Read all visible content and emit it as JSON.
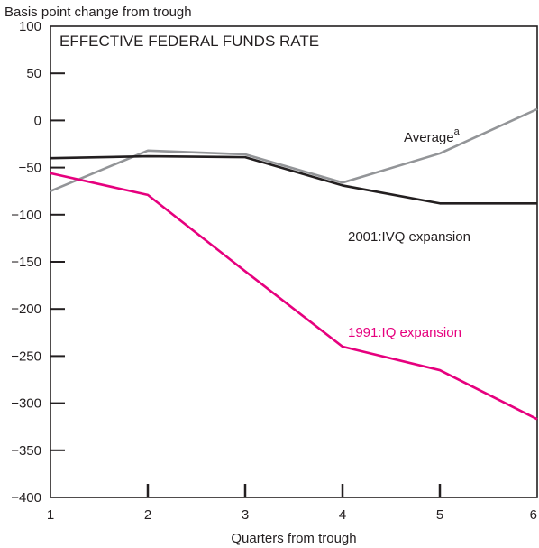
{
  "chart_data": {
    "type": "line",
    "title": "EFFECTIVE FEDERAL FUNDS RATE",
    "ylabel": "Basis point change from trough",
    "xlabel": "Quarters from trough",
    "x": [
      1,
      2,
      3,
      4,
      5,
      6
    ],
    "xlim": [
      1,
      6
    ],
    "ylim": [
      -400,
      100
    ],
    "yticks": [
      100,
      50,
      0,
      -50,
      -100,
      -150,
      -200,
      -250,
      -300,
      -350,
      -400
    ],
    "ytick_labels": [
      "100",
      "50",
      "0",
      "−50",
      "−100",
      "−150",
      "−200",
      "−250",
      "−300",
      "−350",
      "−400"
    ],
    "xtick_labels": [
      "1",
      "2",
      "3",
      "4",
      "5",
      "6"
    ],
    "grid": false,
    "series": [
      {
        "name": "Average",
        "superscript": "a",
        "color": "#939598",
        "values": [
          -75,
          -32,
          -36,
          -66,
          -35,
          12
        ]
      },
      {
        "name": "2001:IVQ expansion",
        "color": "#231f20",
        "values": [
          -40,
          -38,
          -39,
          -69,
          -88,
          -88
        ]
      },
      {
        "name": "1991:IQ expansion",
        "color": "#e6007e",
        "values": [
          -56,
          -79,
          -160,
          -240,
          -265,
          -317
        ]
      }
    ]
  }
}
